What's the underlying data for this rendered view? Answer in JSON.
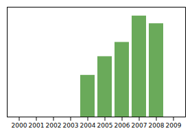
{
  "chart_data": {
    "type": "bar",
    "categories": [
      "2000",
      "2001",
      "2002",
      "2003",
      "2004",
      "2005",
      "2006",
      "2007",
      "2008",
      "2009"
    ],
    "values": [
      0,
      0,
      0,
      0,
      0.38,
      0.55,
      0.68,
      0.92,
      0.85,
      0
    ],
    "color": "#6aaa5a",
    "ylim": [
      0,
      1.0
    ],
    "yticks": [],
    "grid": false,
    "tick_labels": "x"
  }
}
